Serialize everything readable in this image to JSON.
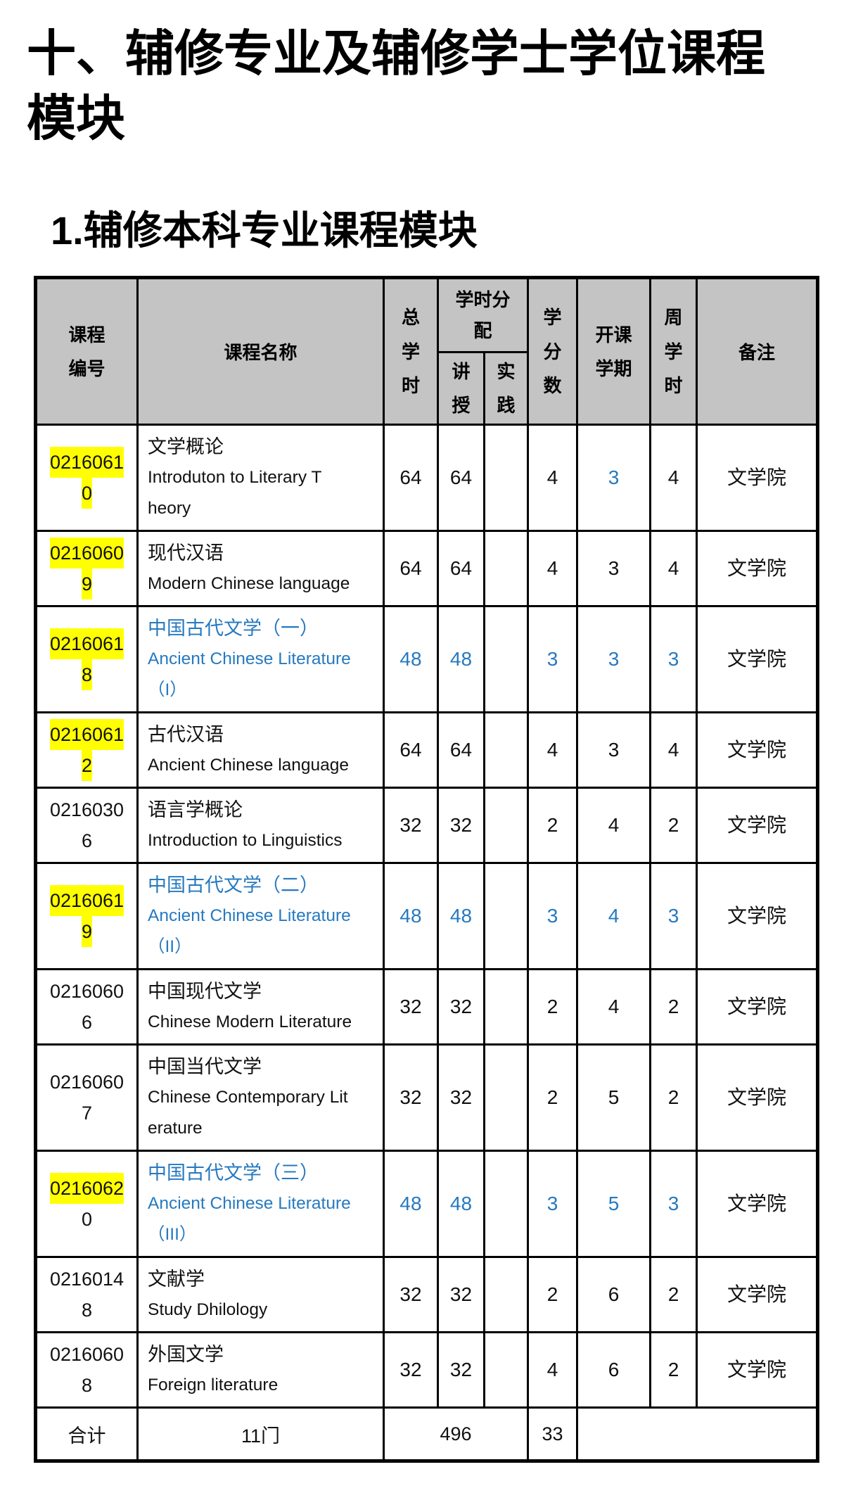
{
  "page": {
    "title_lines": [
      "十、辅修专业及辅修学士学位课程",
      "模块"
    ],
    "subtitle": "1.辅修本科专业课程模块"
  },
  "colors": {
    "highlight": "#ffff00",
    "blue_text": "#2679c0",
    "header_bg": "#c4c4c4",
    "border": "#000000",
    "text": "#111111"
  },
  "table": {
    "headers": {
      "course_id": "课程编号",
      "course_name": "课程名称",
      "total_hours": "总学时",
      "hours_alloc": "学时分配",
      "lecture": "讲授",
      "practice": "实践",
      "credits": "学分数",
      "semester": "开课学期",
      "weekly_hours": "周学时",
      "notes": "备注"
    },
    "rows": [
      {
        "id_lines": [
          {
            "text": "0216061",
            "highlight": true
          },
          {
            "text": "0",
            "highlight": true
          }
        ],
        "name_zh": "文学概论",
        "name_en_lines": [
          "Introduton to Literary T",
          "heory"
        ],
        "name_blue": false,
        "cells": {
          "total": "64",
          "lecture": "64",
          "practice": "",
          "credits": "4",
          "semester": "3",
          "weekly": "4",
          "note": "文学院"
        },
        "blue": {
          "semester": true
        }
      },
      {
        "id_lines": [
          {
            "text": "0216060",
            "highlight": true
          },
          {
            "text": "9",
            "highlight": true
          }
        ],
        "name_zh": "现代汉语",
        "name_en_lines": [
          "Modern Chinese language"
        ],
        "name_blue": false,
        "cells": {
          "total": "64",
          "lecture": "64",
          "practice": "",
          "credits": "4",
          "semester": "3",
          "weekly": "4",
          "note": "文学院"
        },
        "blue": {}
      },
      {
        "id_lines": [
          {
            "text": "0216061",
            "highlight": true
          },
          {
            "text": "8",
            "highlight": true
          }
        ],
        "name_zh": "中国古代文学（一）",
        "name_en_lines": [
          "Ancient Chinese Literature",
          "（I）"
        ],
        "name_blue": true,
        "cells": {
          "total": "48",
          "lecture": "48",
          "practice": "",
          "credits": "3",
          "semester": "3",
          "weekly": "3",
          "note": "文学院"
        },
        "blue": {
          "total": true,
          "lecture": true,
          "credits": true,
          "semester": true,
          "weekly": true
        }
      },
      {
        "id_lines": [
          {
            "text": "0216061",
            "highlight": true
          },
          {
            "text": "2",
            "highlight": true
          }
        ],
        "name_zh": "古代汉语",
        "name_en_lines": [
          "Ancient Chinese language"
        ],
        "name_blue": false,
        "cells": {
          "total": "64",
          "lecture": "64",
          "practice": "",
          "credits": "4",
          "semester": "3",
          "weekly": "4",
          "note": "文学院"
        },
        "blue": {}
      },
      {
        "id_lines": [
          {
            "text": "0216030",
            "highlight": false
          },
          {
            "text": "6",
            "highlight": false
          }
        ],
        "name_zh": "语言学概论",
        "name_en_lines": [
          "Introduction to Linguistics"
        ],
        "name_blue": false,
        "cells": {
          "total": "32",
          "lecture": "32",
          "practice": "",
          "credits": "2",
          "semester": "4",
          "weekly": "2",
          "note": "文学院"
        },
        "blue": {}
      },
      {
        "id_lines": [
          {
            "text": "0216061",
            "highlight": true
          },
          {
            "text": "9",
            "highlight": true
          }
        ],
        "name_zh": "中国古代文学（二）",
        "name_en_lines": [
          "Ancient Chinese Literature",
          "（II）"
        ],
        "name_blue": true,
        "cells": {
          "total": "48",
          "lecture": "48",
          "practice": "",
          "credits": "3",
          "semester": "4",
          "weekly": "3",
          "note": "文学院"
        },
        "blue": {
          "total": true,
          "lecture": true,
          "credits": true,
          "semester": true,
          "weekly": true
        }
      },
      {
        "id_lines": [
          {
            "text": "0216060",
            "highlight": false
          },
          {
            "text": "6",
            "highlight": false
          }
        ],
        "name_zh": "中国现代文学",
        "name_en_lines": [
          "Chinese Modern Literature"
        ],
        "name_blue": false,
        "cells": {
          "total": "32",
          "lecture": "32",
          "practice": "",
          "credits": "2",
          "semester": "4",
          "weekly": "2",
          "note": "文学院"
        },
        "blue": {}
      },
      {
        "id_lines": [
          {
            "text": "0216060",
            "highlight": false
          },
          {
            "text": "7",
            "highlight": false
          }
        ],
        "name_zh": "中国当代文学",
        "name_en_lines": [
          "Chinese Contemporary Lit",
          "erature"
        ],
        "name_blue": false,
        "cells": {
          "total": "32",
          "lecture": "32",
          "practice": "",
          "credits": "2",
          "semester": "5",
          "weekly": "2",
          "note": "文学院"
        },
        "blue": {}
      },
      {
        "id_lines": [
          {
            "text": "0216062",
            "highlight": true
          },
          {
            "text": "0",
            "highlight": false
          }
        ],
        "name_zh": "中国古代文学（三）",
        "name_en_lines": [
          "Ancient Chinese Literature",
          "（III）"
        ],
        "name_blue": true,
        "cells": {
          "total": "48",
          "lecture": "48",
          "practice": "",
          "credits": "3",
          "semester": "5",
          "weekly": "3",
          "note": "文学院"
        },
        "blue": {
          "total": true,
          "lecture": true,
          "credits": true,
          "semester": true,
          "weekly": true
        }
      },
      {
        "id_lines": [
          {
            "text": "0216014",
            "highlight": false
          },
          {
            "text": "8",
            "highlight": false
          }
        ],
        "name_zh": "文献学",
        "name_en_lines": [
          "Study Dhilology"
        ],
        "name_blue": false,
        "cells": {
          "total": "32",
          "lecture": "32",
          "practice": "",
          "credits": "2",
          "semester": "6",
          "weekly": "2",
          "note": "文学院"
        },
        "blue": {}
      },
      {
        "id_lines": [
          {
            "text": "0216060",
            "highlight": false
          },
          {
            "text": "8",
            "highlight": false
          }
        ],
        "name_zh": "外国文学",
        "name_en_lines": [
          "Foreign literature"
        ],
        "name_blue": false,
        "cells": {
          "total": "32",
          "lecture": "32",
          "practice": "",
          "credits": "4",
          "semester": "6",
          "weekly": "2",
          "note": "文学院"
        },
        "blue": {}
      }
    ],
    "total_row": {
      "label": "合计",
      "course_count": "11门",
      "total_hours": "496",
      "credits": "33"
    }
  }
}
